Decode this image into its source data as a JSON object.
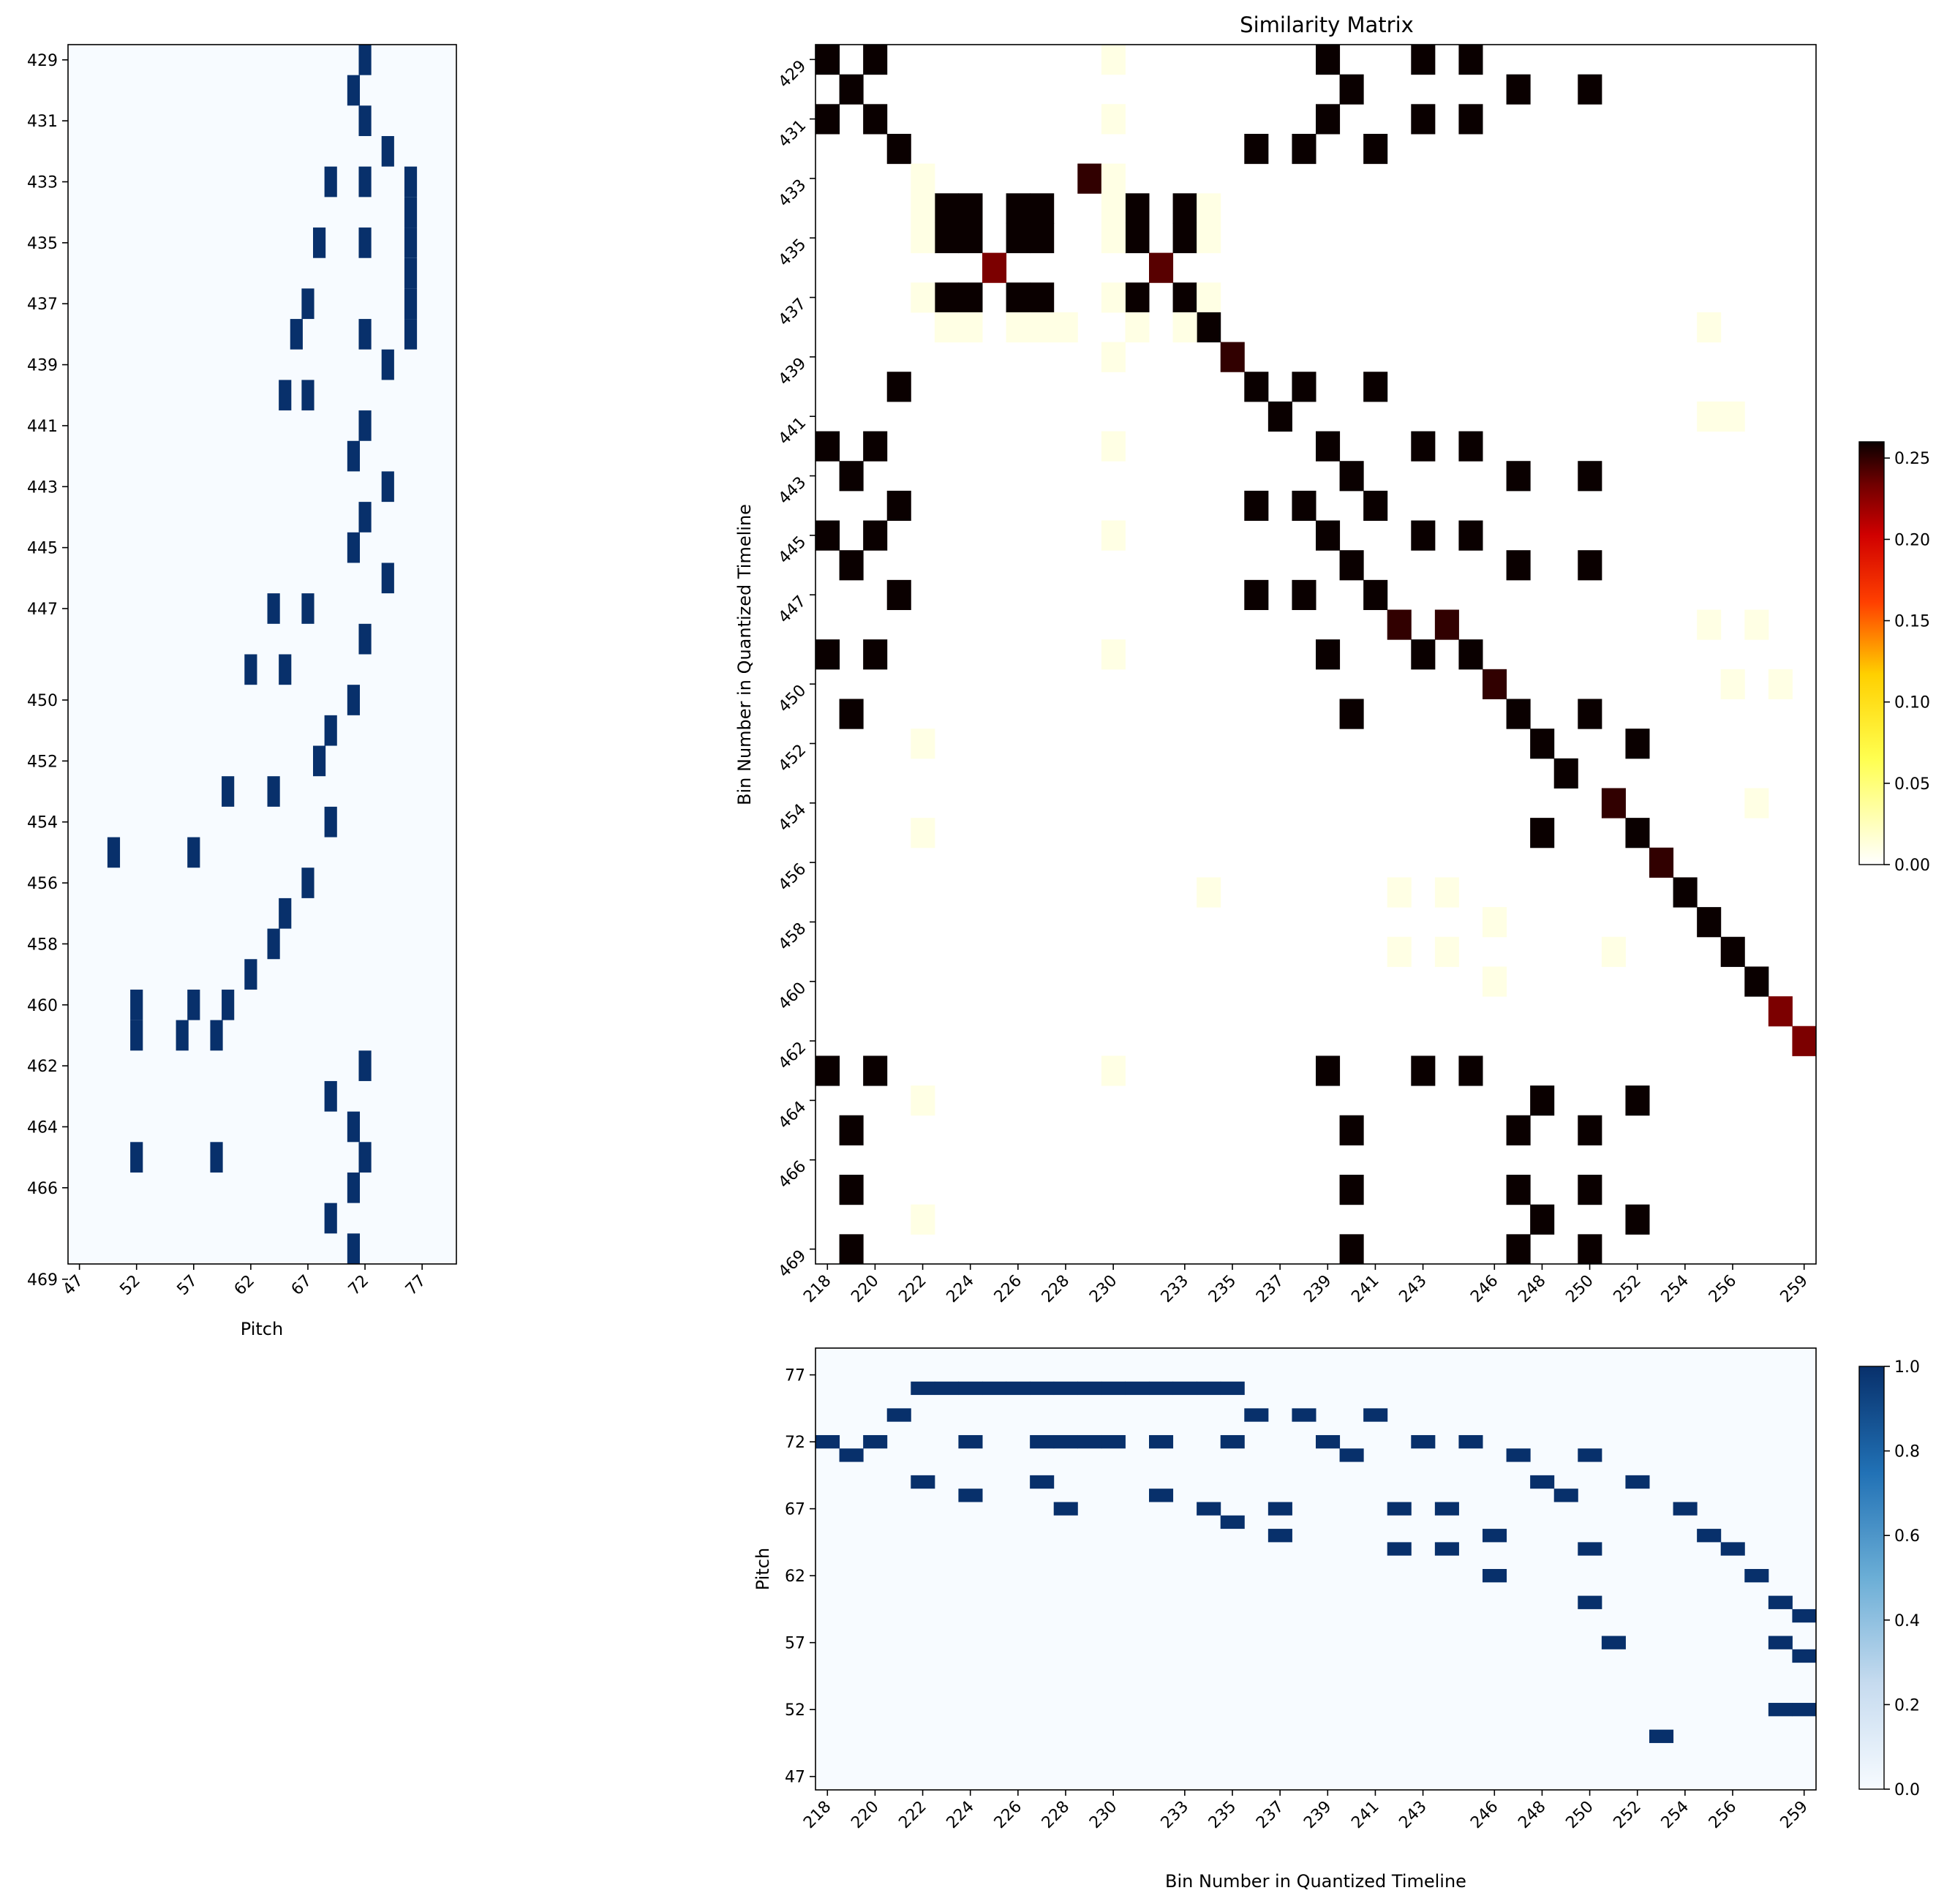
{
  "chart_data": [
    {
      "id": "left_pianoroll",
      "type": "heatmap",
      "title": "",
      "xlabel": "Pitch",
      "ylabel": "",
      "x_tick_labels": [
        "47",
        "52",
        "57",
        "62",
        "67",
        "72",
        "77"
      ],
      "x_ticks": [
        47,
        52,
        57,
        62,
        67,
        72,
        77
      ],
      "xlim": [
        46,
        80
      ],
      "y_tick_labels": [
        "429",
        "431",
        "433",
        "435",
        "437",
        "439",
        "441",
        "443",
        "445",
        "447",
        "450",
        "452",
        "454",
        "456",
        "458",
        "460",
        "462",
        "464",
        "466",
        "469"
      ],
      "y_tick_rows": [
        0,
        2,
        4,
        6,
        8,
        10,
        12,
        14,
        16,
        18,
        21,
        23,
        25,
        27,
        29,
        31,
        33,
        35,
        37,
        40
      ],
      "notes_by_row": [
        [
          72
        ],
        [
          71
        ],
        [
          72
        ],
        [
          74
        ],
        [
          69,
          72,
          76
        ],
        [
          76
        ],
        [
          68,
          72,
          76
        ],
        [
          76
        ],
        [
          67,
          76
        ],
        [
          66,
          72,
          76
        ],
        [
          74
        ],
        [
          65,
          67
        ],
        [
          72
        ],
        [
          71
        ],
        [
          74
        ],
        [
          72
        ],
        [
          71
        ],
        [
          74
        ],
        [
          64,
          67
        ],
        [
          72
        ],
        [
          62,
          65
        ],
        [
          71
        ],
        [
          69
        ],
        [
          68
        ],
        [
          60,
          64
        ],
        [
          69
        ],
        [
          50,
          57
        ],
        [
          67
        ],
        [
          65
        ],
        [
          64
        ],
        [
          62
        ],
        [
          52,
          57,
          60
        ],
        [
          52,
          56,
          59
        ],
        [
          72
        ],
        [
          69
        ],
        [
          71
        ],
        [
          52,
          59,
          72
        ],
        [
          71
        ],
        [
          69
        ],
        [
          71
        ]
      ],
      "colormap": "Blues",
      "cell_color_on": "#08306b",
      "cell_color_off": "#f7fbff"
    },
    {
      "id": "similarity_matrix",
      "type": "heatmap",
      "title": "Similarity Matrix",
      "xlabel": "",
      "ylabel": "Bin Number in Quantized Timeline",
      "x_tick_labels": [
        "218",
        "220",
        "222",
        "224",
        "226",
        "228",
        "230",
        "233",
        "235",
        "237",
        "239",
        "241",
        "243",
        "246",
        "248",
        "250",
        "252",
        "254",
        "256",
        "259"
      ],
      "x_tick_cols": [
        0,
        2,
        4,
        6,
        8,
        10,
        12,
        15,
        17,
        19,
        21,
        23,
        25,
        28,
        30,
        32,
        34,
        36,
        38,
        41
      ],
      "y_tick_labels": [
        "429",
        "431",
        "433",
        "435",
        "437",
        "439",
        "441",
        "443",
        "445",
        "447",
        "450",
        "452",
        "454",
        "456",
        "458",
        "460",
        "462",
        "464",
        "466",
        "469"
      ],
      "y_tick_rows": [
        0,
        2,
        4,
        6,
        8,
        10,
        12,
        14,
        16,
        18,
        21,
        23,
        25,
        27,
        29,
        31,
        33,
        35,
        37,
        40
      ],
      "n_rows": 41,
      "n_cols": 42,
      "cells": [
        [
          0,
          0,
          0.26
        ],
        [
          0,
          2,
          0.26
        ],
        [
          0,
          21,
          0.26
        ],
        [
          0,
          25,
          0.26
        ],
        [
          0,
          27,
          0.26
        ],
        [
          0,
          12,
          0.01
        ],
        [
          1,
          1,
          0.26
        ],
        [
          1,
          22,
          0.26
        ],
        [
          1,
          29,
          0.26
        ],
        [
          1,
          32,
          0.26
        ],
        [
          2,
          0,
          0.26
        ],
        [
          2,
          2,
          0.26
        ],
        [
          2,
          21,
          0.26
        ],
        [
          2,
          25,
          0.26
        ],
        [
          2,
          27,
          0.26
        ],
        [
          2,
          12,
          0.01
        ],
        [
          3,
          3,
          0.26
        ],
        [
          3,
          18,
          0.26
        ],
        [
          3,
          20,
          0.26
        ],
        [
          3,
          23,
          0.26
        ],
        [
          4,
          11,
          0.25
        ],
        [
          4,
          4,
          0.01
        ],
        [
          4,
          12,
          0.01
        ],
        [
          5,
          5,
          0.26
        ],
        [
          5,
          6,
          0.26
        ],
        [
          5,
          8,
          0.26
        ],
        [
          5,
          9,
          0.26
        ],
        [
          5,
          13,
          0.26
        ],
        [
          5,
          15,
          0.26
        ],
        [
          5,
          4,
          0.01
        ],
        [
          5,
          12,
          0.01
        ],
        [
          5,
          16,
          0.01
        ],
        [
          6,
          5,
          0.26
        ],
        [
          6,
          6,
          0.26
        ],
        [
          6,
          8,
          0.26
        ],
        [
          6,
          9,
          0.26
        ],
        [
          6,
          13,
          0.26
        ],
        [
          6,
          15,
          0.26
        ],
        [
          6,
          4,
          0.01
        ],
        [
          6,
          12,
          0.01
        ],
        [
          6,
          16,
          0.01
        ],
        [
          7,
          7,
          0.23
        ],
        [
          7,
          14,
          0.24
        ],
        [
          8,
          5,
          0.26
        ],
        [
          8,
          6,
          0.26
        ],
        [
          8,
          8,
          0.26
        ],
        [
          8,
          9,
          0.26
        ],
        [
          8,
          13,
          0.26
        ],
        [
          8,
          15,
          0.26
        ],
        [
          8,
          4,
          0.01
        ],
        [
          8,
          12,
          0.01
        ],
        [
          8,
          16,
          0.01
        ],
        [
          9,
          16,
          0.26
        ],
        [
          9,
          5,
          0.01
        ],
        [
          9,
          6,
          0.01
        ],
        [
          9,
          8,
          0.01
        ],
        [
          9,
          9,
          0.01
        ],
        [
          9,
          10,
          0.01
        ],
        [
          9,
          13,
          0.01
        ],
        [
          9,
          15,
          0.01
        ],
        [
          9,
          37,
          0.01
        ],
        [
          10,
          17,
          0.25
        ],
        [
          10,
          12,
          0.01
        ],
        [
          11,
          3,
          0.26
        ],
        [
          11,
          18,
          0.26
        ],
        [
          11,
          20,
          0.26
        ],
        [
          11,
          23,
          0.26
        ],
        [
          12,
          19,
          0.26
        ],
        [
          12,
          37,
          0.01
        ],
        [
          12,
          38,
          0.01
        ],
        [
          13,
          0,
          0.26
        ],
        [
          13,
          2,
          0.26
        ],
        [
          13,
          21,
          0.26
        ],
        [
          13,
          25,
          0.26
        ],
        [
          13,
          27,
          0.26
        ],
        [
          13,
          12,
          0.01
        ],
        [
          14,
          1,
          0.26
        ],
        [
          14,
          22,
          0.26
        ],
        [
          14,
          29,
          0.26
        ],
        [
          14,
          32,
          0.26
        ],
        [
          15,
          3,
          0.26
        ],
        [
          15,
          18,
          0.26
        ],
        [
          15,
          20,
          0.26
        ],
        [
          15,
          23,
          0.26
        ],
        [
          16,
          0,
          0.26
        ],
        [
          16,
          2,
          0.26
        ],
        [
          16,
          21,
          0.26
        ],
        [
          16,
          25,
          0.26
        ],
        [
          16,
          27,
          0.26
        ],
        [
          16,
          12,
          0.01
        ],
        [
          17,
          1,
          0.26
        ],
        [
          17,
          22,
          0.26
        ],
        [
          17,
          29,
          0.26
        ],
        [
          17,
          32,
          0.26
        ],
        [
          18,
          3,
          0.26
        ],
        [
          18,
          18,
          0.26
        ],
        [
          18,
          20,
          0.26
        ],
        [
          18,
          23,
          0.26
        ],
        [
          19,
          24,
          0.25
        ],
        [
          19,
          26,
          0.25
        ],
        [
          19,
          37,
          0.01
        ],
        [
          19,
          39,
          0.01
        ],
        [
          20,
          0,
          0.26
        ],
        [
          20,
          2,
          0.26
        ],
        [
          20,
          21,
          0.26
        ],
        [
          20,
          25,
          0.26
        ],
        [
          20,
          27,
          0.26
        ],
        [
          20,
          12,
          0.01
        ],
        [
          21,
          28,
          0.25
        ],
        [
          21,
          38,
          0.01
        ],
        [
          21,
          40,
          0.01
        ],
        [
          22,
          1,
          0.26
        ],
        [
          22,
          22,
          0.26
        ],
        [
          22,
          29,
          0.26
        ],
        [
          22,
          32,
          0.26
        ],
        [
          23,
          30,
          0.26
        ],
        [
          23,
          34,
          0.26
        ],
        [
          23,
          4,
          0.01
        ],
        [
          24,
          31,
          0.26
        ],
        [
          25,
          33,
          0.25
        ],
        [
          25,
          39,
          0.01
        ],
        [
          26,
          30,
          0.26
        ],
        [
          26,
          34,
          0.26
        ],
        [
          26,
          4,
          0.01
        ],
        [
          27,
          35,
          0.25
        ],
        [
          28,
          36,
          0.26
        ],
        [
          28,
          16,
          0.01
        ],
        [
          28,
          24,
          0.01
        ],
        [
          28,
          26,
          0.01
        ],
        [
          29,
          37,
          0.26
        ],
        [
          29,
          28,
          0.01
        ],
        [
          30,
          38,
          0.26
        ],
        [
          30,
          24,
          0.01
        ],
        [
          30,
          26,
          0.01
        ],
        [
          30,
          33,
          0.01
        ],
        [
          31,
          39,
          0.26
        ],
        [
          31,
          28,
          0.01
        ],
        [
          32,
          40,
          0.23
        ],
        [
          33,
          41,
          0.23
        ],
        [
          34,
          0,
          0.26
        ],
        [
          34,
          2,
          0.26
        ],
        [
          34,
          21,
          0.26
        ],
        [
          34,
          25,
          0.26
        ],
        [
          34,
          27,
          0.26
        ],
        [
          34,
          12,
          0.01
        ],
        [
          35,
          30,
          0.26
        ],
        [
          35,
          34,
          0.26
        ],
        [
          35,
          4,
          0.01
        ],
        [
          36,
          1,
          0.26
        ],
        [
          36,
          22,
          0.26
        ],
        [
          36,
          29,
          0.26
        ],
        [
          36,
          32,
          0.26
        ],
        [
          38,
          1,
          0.26
        ],
        [
          38,
          22,
          0.26
        ],
        [
          38,
          29,
          0.26
        ],
        [
          38,
          32,
          0.26
        ],
        [
          39,
          30,
          0.26
        ],
        [
          39,
          34,
          0.26
        ],
        [
          39,
          4,
          0.01
        ],
        [
          40,
          1,
          0.26
        ],
        [
          40,
          22,
          0.26
        ],
        [
          40,
          29,
          0.26
        ],
        [
          40,
          32,
          0.26
        ]
      ],
      "colormap": "hot_r",
      "colorbar": {
        "min": 0.0,
        "max": 0.26,
        "tick_values": [
          0.0,
          0.05,
          0.1,
          0.15,
          0.2,
          0.25
        ],
        "tick_labels": [
          "0.00",
          "0.05",
          "0.10",
          "0.15",
          "0.20",
          "0.25"
        ]
      }
    },
    {
      "id": "bottom_pianoroll",
      "type": "heatmap",
      "title": "",
      "xlabel": "Bin Number in Quantized Timeline",
      "ylabel": "Pitch",
      "x_tick_labels": [
        "218",
        "220",
        "222",
        "224",
        "226",
        "228",
        "230",
        "233",
        "235",
        "237",
        "239",
        "241",
        "243",
        "246",
        "248",
        "250",
        "252",
        "254",
        "256",
        "259"
      ],
      "x_tick_cols": [
        0,
        2,
        4,
        6,
        8,
        10,
        12,
        15,
        17,
        19,
        21,
        23,
        25,
        28,
        30,
        32,
        34,
        36,
        38,
        41
      ],
      "y_tick_labels": [
        "77",
        "72",
        "67",
        "62",
        "57",
        "52",
        "47"
      ],
      "y_ticks": [
        77,
        72,
        67,
        62,
        57,
        52,
        47
      ],
      "ylim": [
        46,
        79
      ],
      "n_cols": 42,
      "notes_by_col": [
        [
          72
        ],
        [
          71
        ],
        [
          72
        ],
        [
          74
        ],
        [
          69,
          76
        ],
        [
          76
        ],
        [
          68,
          72,
          76
        ],
        [
          76
        ],
        [
          76
        ],
        [
          69,
          72,
          76
        ],
        [
          67,
          72,
          76
        ],
        [
          72,
          76
        ],
        [
          72,
          76
        ],
        [
          76
        ],
        [
          68,
          72,
          76
        ],
        [
          76
        ],
        [
          67,
          76
        ],
        [
          66,
          72,
          76
        ],
        [
          74
        ],
        [
          65,
          67
        ],
        [
          74
        ],
        [
          72
        ],
        [
          71
        ],
        [
          74
        ],
        [
          64,
          67
        ],
        [
          72
        ],
        [
          64,
          67
        ],
        [
          72
        ],
        [
          62,
          65
        ],
        [
          71
        ],
        [
          69
        ],
        [
          68
        ],
        [
          60,
          64,
          71
        ],
        [
          57
        ],
        [
          69
        ],
        [
          50
        ],
        [
          67
        ],
        [
          65
        ],
        [
          64
        ],
        [
          62
        ],
        [
          52,
          57,
          60
        ],
        [
          52,
          56,
          59
        ]
      ],
      "colormap": "Blues",
      "colorbar": {
        "min": 0.0,
        "max": 1.0,
        "tick_values": [
          0.0,
          0.2,
          0.4,
          0.6,
          0.8,
          1.0
        ],
        "tick_labels": [
          "0.0",
          "0.2",
          "0.4",
          "0.6",
          "0.8",
          "1.0"
        ]
      }
    }
  ]
}
